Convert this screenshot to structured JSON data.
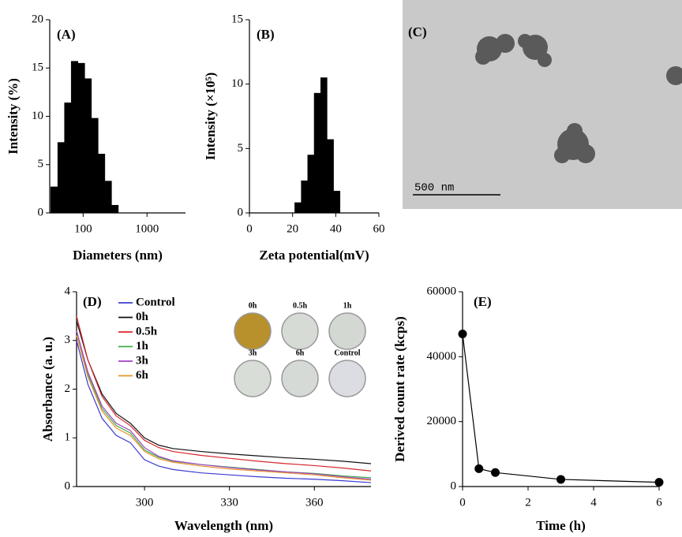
{
  "chart_data": [
    {
      "type": "histogram",
      "title": "(A)",
      "x_label": "Diameters (nm)",
      "y_label": "Intensity (%)",
      "xscale": "log",
      "xlim": [
        30,
        4000
      ],
      "xticks": [
        100,
        1000
      ],
      "ylim": [
        0,
        20
      ],
      "yticks": [
        0,
        5,
        10,
        15,
        20
      ],
      "bins": [
        31,
        40,
        51,
        65,
        83,
        106,
        135,
        172,
        219,
        279,
        356
      ],
      "values": [
        2.7,
        7.3,
        11.4,
        15.7,
        15.5,
        13.9,
        9.8,
        6.1,
        3.3,
        0.8
      ],
      "color": "#000000"
    },
    {
      "type": "histogram",
      "title": "(B)",
      "x_label": "Zeta potential(mV)",
      "y_label": "Intensity (×10⁵)",
      "xlim": [
        0,
        60
      ],
      "xticks": [
        0,
        20,
        40,
        60
      ],
      "ylim": [
        0,
        15
      ],
      "yticks": [
        0,
        5,
        10,
        15
      ],
      "bins": [
        21,
        24,
        27,
        30,
        33,
        36,
        39,
        42
      ],
      "values": [
        0.8,
        2.5,
        4.5,
        9.3,
        10.5,
        5.7,
        1.7
      ],
      "color": "#000000"
    },
    {
      "type": "image",
      "title": "(C)",
      "scale_bar": "500 nm"
    },
    {
      "type": "line",
      "title": "(D)",
      "x_label": "Wavelength (nm)",
      "y_label": "Absorbance (a. u.)",
      "xlim": [
        276,
        380
      ],
      "xticks": [
        300,
        330,
        360
      ],
      "ylim": [
        0,
        4
      ],
      "yticks": [
        0,
        1,
        2,
        3,
        4
      ],
      "x": [
        276,
        280,
        285,
        290,
        295,
        300,
        305,
        310,
        320,
        330,
        340,
        350,
        360,
        370,
        380
      ],
      "series": [
        {
          "name": "Control",
          "color": "#3b3bd0",
          "values": [
            3.0,
            2.1,
            1.4,
            1.05,
            0.9,
            0.55,
            0.42,
            0.35,
            0.28,
            0.24,
            0.2,
            0.17,
            0.15,
            0.12,
            0.08
          ]
        },
        {
          "name": "0h",
          "color": "#111111",
          "values": [
            3.4,
            2.6,
            1.9,
            1.5,
            1.3,
            1.0,
            0.85,
            0.78,
            0.72,
            0.67,
            0.63,
            0.59,
            0.56,
            0.52,
            0.47
          ]
        },
        {
          "name": "0.5h",
          "color": "#d8262e",
          "values": [
            3.5,
            2.6,
            1.85,
            1.45,
            1.25,
            0.95,
            0.8,
            0.72,
            0.64,
            0.58,
            0.52,
            0.47,
            0.43,
            0.38,
            0.32
          ]
        },
        {
          "name": "1h",
          "color": "#3fae49",
          "values": [
            3.2,
            2.3,
            1.6,
            1.25,
            1.1,
            0.75,
            0.6,
            0.52,
            0.45,
            0.4,
            0.35,
            0.3,
            0.27,
            0.22,
            0.18
          ]
        },
        {
          "name": "3h",
          "color": "#a23fc4",
          "values": [
            3.2,
            2.35,
            1.65,
            1.3,
            1.15,
            0.8,
            0.62,
            0.53,
            0.45,
            0.39,
            0.34,
            0.3,
            0.26,
            0.2,
            0.15
          ]
        },
        {
          "name": "6h",
          "color": "#e8962e",
          "values": [
            3.1,
            2.25,
            1.55,
            1.2,
            1.05,
            0.72,
            0.57,
            0.5,
            0.42,
            0.36,
            0.32,
            0.28,
            0.24,
            0.18,
            0.13
          ]
        }
      ],
      "inset_labels": [
        "0h",
        "0.5h",
        "1h",
        "3h",
        "6h",
        "Control"
      ]
    },
    {
      "type": "line",
      "title": "(E)",
      "x_label": "Time (h)",
      "y_label": "Derived count rate (kcps)",
      "xlim": [
        0,
        6
      ],
      "xticks": [
        0,
        2,
        4,
        6
      ],
      "ylim": [
        0,
        60000
      ],
      "yticks": [
        0,
        20000,
        40000,
        60000
      ],
      "x": [
        0,
        0.5,
        1,
        3,
        6
      ],
      "markers": true,
      "series": [
        {
          "color": "#000000",
          "values": [
            47000,
            5500,
            4300,
            2200,
            1300
          ]
        }
      ]
    }
  ]
}
